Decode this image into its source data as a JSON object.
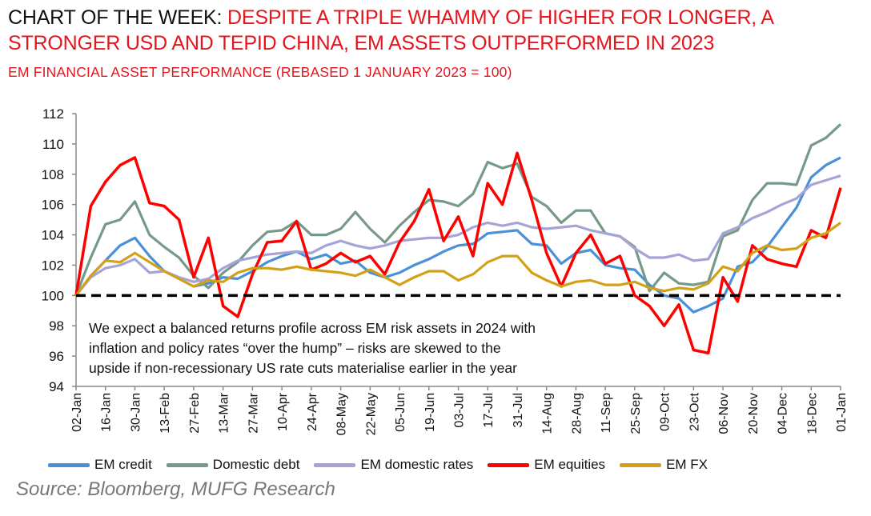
{
  "title": {
    "lead": "CHART OF THE WEEK:",
    "headline": "DESPITE A TRIPLE WHAMMY OF HIGHER FOR LONGER, A STRONGER USD AND TEPID CHINA, EM ASSETS OUTPERFORMED IN 2023"
  },
  "subtitle": "EM FINANCIAL ASSET PERFORMANCE (REBASED 1 JANUARY 2023 = 100)",
  "annotation": [
    "We expect a balanced returns profile across EM risk assets in 2024 with",
    "inflation and policy rates “over the hump” – risks are skewed to the",
    "upside if non-recessionary US rate cuts materialise earlier in the year"
  ],
  "source": "Source: Bloomberg, MUFG Research",
  "chart_data": {
    "type": "line",
    "title": "",
    "xlabel": "",
    "ylabel": "",
    "ylim": [
      94,
      112
    ],
    "yticks": [
      94,
      96,
      98,
      100,
      102,
      104,
      106,
      108,
      110,
      112
    ],
    "xtick_labels": [
      "02-Jan",
      "16-Jan",
      "30-Jan",
      "13-Feb",
      "27-Feb",
      "13-Mar",
      "27-Mar",
      "10-Apr",
      "24-Apr",
      "08-May",
      "22-May",
      "05-Jun",
      "19-Jun",
      "03-Jul",
      "17-Jul",
      "31-Jul",
      "14-Aug",
      "28-Aug",
      "11-Sep",
      "25-Sep",
      "09-Oct",
      "23-Oct",
      "06-Nov",
      "20-Nov",
      "04-Dec",
      "18-Dec",
      "01-Jan"
    ],
    "grid": false,
    "legend_position": "bottom",
    "reference_line": {
      "y": 100,
      "style": "dashed",
      "color": "#000000"
    },
    "x": [
      "2023-01-02",
      "2023-01-09",
      "2023-01-16",
      "2023-01-23",
      "2023-01-30",
      "2023-02-06",
      "2023-02-13",
      "2023-02-20",
      "2023-02-27",
      "2023-03-06",
      "2023-03-13",
      "2023-03-20",
      "2023-03-27",
      "2023-04-03",
      "2023-04-10",
      "2023-04-17",
      "2023-04-24",
      "2023-05-01",
      "2023-05-08",
      "2023-05-15",
      "2023-05-22",
      "2023-05-29",
      "2023-06-05",
      "2023-06-12",
      "2023-06-19",
      "2023-06-26",
      "2023-07-03",
      "2023-07-10",
      "2023-07-17",
      "2023-07-24",
      "2023-07-31",
      "2023-08-07",
      "2023-08-14",
      "2023-08-21",
      "2023-08-28",
      "2023-09-04",
      "2023-09-11",
      "2023-09-18",
      "2023-09-25",
      "2023-10-02",
      "2023-10-09",
      "2023-10-16",
      "2023-10-23",
      "2023-10-30",
      "2023-11-06",
      "2023-11-13",
      "2023-11-20",
      "2023-11-27",
      "2023-12-04",
      "2023-12-11",
      "2023-12-18",
      "2023-12-25",
      "2024-01-01"
    ],
    "series": [
      {
        "name": "EM credit",
        "color": "#4a90d9",
        "values": [
          100,
          101.3,
          102.3,
          103.3,
          103.8,
          102.6,
          101.6,
          101.1,
          100.6,
          100.8,
          101.2,
          101.1,
          101.6,
          102.2,
          102.6,
          102.9,
          102.4,
          102.7,
          102.1,
          102.3,
          101.5,
          101.2,
          101.5,
          102.0,
          102.4,
          102.9,
          103.3,
          103.4,
          104.1,
          104.2,
          104.3,
          103.4,
          103.3,
          102.1,
          102.8,
          103.0,
          102.0,
          101.8,
          101.7,
          100.7,
          100.0,
          99.8,
          98.9,
          99.3,
          99.8,
          101.9,
          102.2,
          103.2,
          104.5,
          105.8,
          107.8,
          108.6,
          109.1
        ]
      },
      {
        "name": "Domestic debt",
        "color": "#76998a",
        "values": [
          100,
          102.5,
          104.7,
          105,
          106.2,
          104,
          103.2,
          102.5,
          101.3,
          100.5,
          101.5,
          102.2,
          103.3,
          104.2,
          104.3,
          104.9,
          104,
          104,
          104.4,
          105.5,
          104.4,
          103.5,
          104.6,
          105.5,
          106.3,
          106.2,
          105.9,
          106.7,
          108.8,
          108.4,
          108.7,
          106.5,
          105.9,
          104.8,
          105.6,
          105.6,
          104.1,
          103.9,
          103.2,
          100.3,
          101.5,
          100.8,
          100.7,
          100.9,
          103.9,
          104.3,
          106.3,
          107.4,
          107.4,
          107.3,
          109.9,
          110.4,
          111.3
        ]
      },
      {
        "name": "EM domestic rates",
        "color": "#a6a4d6",
        "values": [
          100,
          101.2,
          101.8,
          102,
          102.4,
          101.5,
          101.6,
          101.2,
          100.9,
          101.1,
          101.8,
          102.3,
          102.5,
          102.7,
          102.8,
          102.9,
          102.8,
          103.3,
          103.6,
          103.3,
          103.1,
          103.3,
          103.6,
          103.7,
          103.8,
          103.8,
          104,
          104.5,
          104.8,
          104.6,
          104.8,
          104.5,
          104.4,
          104.5,
          104.6,
          104.3,
          104.1,
          103.9,
          103.1,
          102.5,
          102.5,
          102.7,
          102.3,
          102.4,
          104.1,
          104.5,
          105.1,
          105.5,
          106,
          106.4,
          107.3,
          107.6,
          107.9
        ]
      },
      {
        "name": "EM equities",
        "color": "#ff0000",
        "values": [
          100,
          105.9,
          107.5,
          108.6,
          109.1,
          106.1,
          105.9,
          105,
          101.2,
          103.8,
          99.3,
          98.6,
          101.4,
          103.5,
          103.6,
          104.9,
          101.7,
          102.1,
          102.8,
          102.2,
          102.6,
          101.4,
          103.5,
          104.9,
          107,
          103.6,
          105.2,
          102.6,
          107.4,
          106,
          109.4,
          106.3,
          102.8,
          100.6,
          102.8,
          104,
          102.1,
          102.6,
          100,
          99.3,
          98,
          99.4,
          96.4,
          96.2,
          101.2,
          99.6,
          103.3,
          102.4,
          102.1,
          101.9,
          104.3,
          103.8,
          107.1
        ]
      },
      {
        "name": "EM FX",
        "color": "#d4a017",
        "values": [
          100,
          101.3,
          102.3,
          102.2,
          102.8,
          102.2,
          101.6,
          101.1,
          100.6,
          101.0,
          100.9,
          101.5,
          101.8,
          101.8,
          101.7,
          101.9,
          101.7,
          101.6,
          101.5,
          101.3,
          101.7,
          101.2,
          100.7,
          101.2,
          101.6,
          101.6,
          101.0,
          101.4,
          102.2,
          102.6,
          102.6,
          101.5,
          101.0,
          100.6,
          100.9,
          101.0,
          100.7,
          100.7,
          100.9,
          100.5,
          100.3,
          100.5,
          100.4,
          100.8,
          101.9,
          101.6,
          102.8,
          103.3,
          103.0,
          103.1,
          103.8,
          104.1,
          104.8
        ]
      }
    ]
  }
}
